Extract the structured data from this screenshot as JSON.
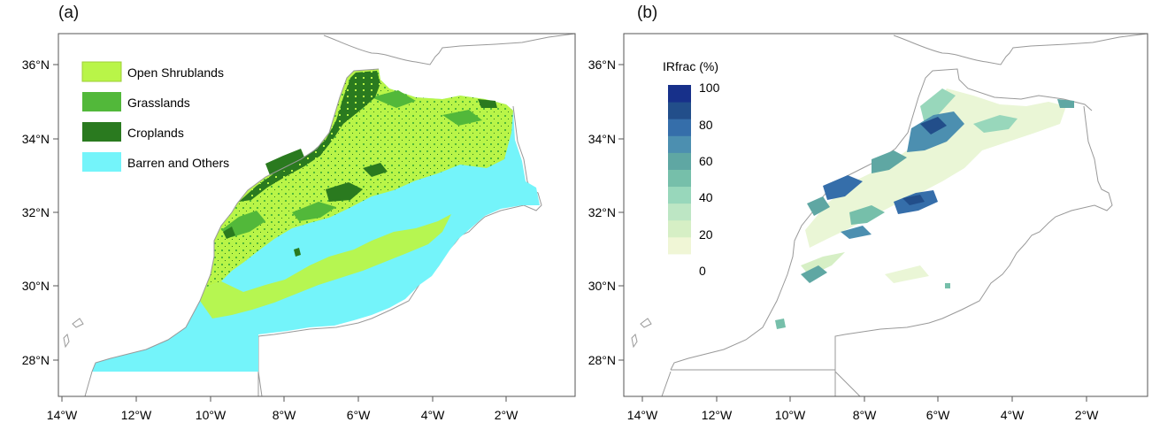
{
  "panels": [
    {
      "label": "(a)",
      "legend": [
        {
          "label": "Open Shrublands",
          "color": "#b9f548"
        },
        {
          "label": "Grasslands",
          "color": "#52b83a"
        },
        {
          "label": "Croplands",
          "color": "#2a7a1f"
        },
        {
          "label": "Barren and Others",
          "color": "#74f4fa"
        }
      ]
    },
    {
      "label": "(b)",
      "colorbar": {
        "title": "IRfrac (%)",
        "tick_labels": [
          "100",
          "80",
          "60",
          "40",
          "20",
          "0"
        ],
        "colors": [
          "#ffffff",
          "#f0f6d6",
          "#d6efc5",
          "#bde6c4",
          "#98d7bb",
          "#76bfaa",
          "#5fa7a3",
          "#4c8fb0",
          "#356eaa",
          "#224e8a",
          "#17308a"
        ]
      }
    }
  ],
  "axes": {
    "lat_labels": [
      "36°N",
      "34°N",
      "32°N",
      "30°N",
      "28°N"
    ],
    "lon_labels": [
      "14°W",
      "12°W",
      "10°W",
      "8°W",
      "6°W",
      "4°W",
      "2°W"
    ]
  },
  "colors": {
    "frame": "#555555",
    "coastline": "#999999",
    "outside_land": "#ffffff",
    "shrubland": "#b9f548",
    "grassland": "#52b83a",
    "cropland": "#2a7a1f",
    "barren": "#74f4fa"
  }
}
